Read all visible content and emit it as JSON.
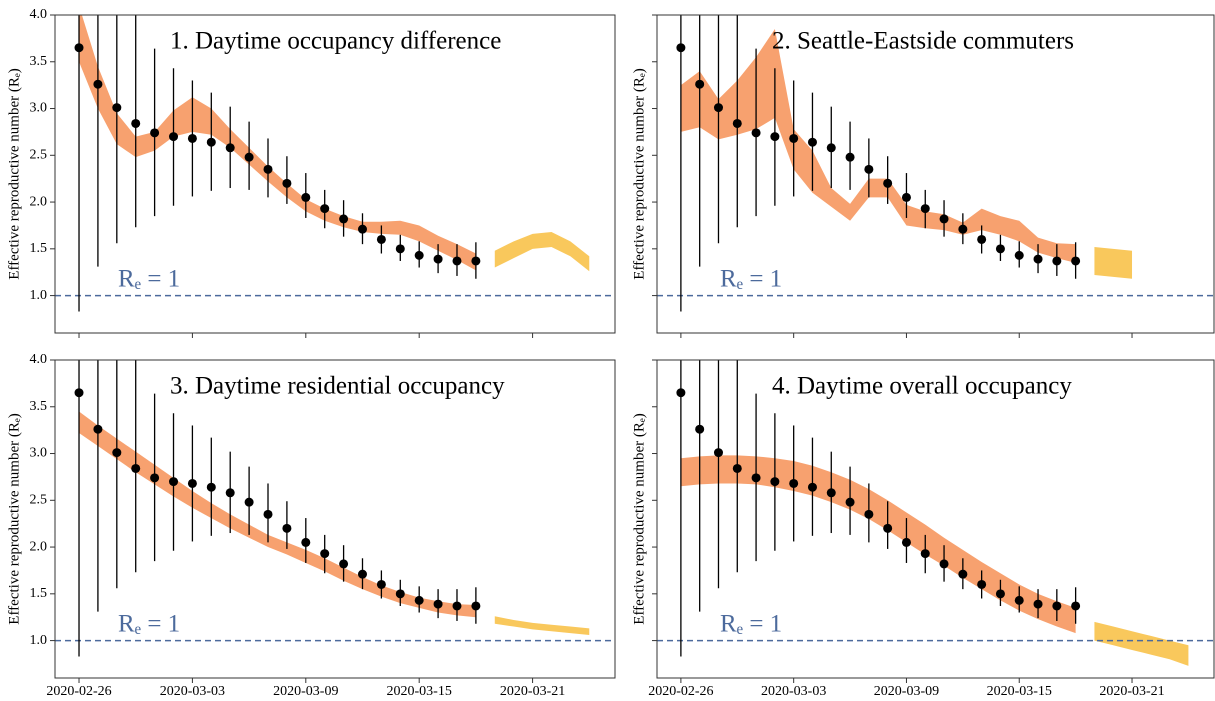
{
  "chart_data": [
    {
      "type": "errorbar",
      "title": "1. Daytime occupancy difference",
      "ylabel": "Effective reproductive number (Rₑ)",
      "x": [
        "2020-02-26",
        "2020-02-27",
        "2020-02-28",
        "2020-02-29",
        "2020-03-01",
        "2020-03-02",
        "2020-03-03",
        "2020-03-04",
        "2020-03-05",
        "2020-03-06",
        "2020-03-07",
        "2020-03-08",
        "2020-03-09",
        "2020-03-10",
        "2020-03-11",
        "2020-03-12",
        "2020-03-13",
        "2020-03-14",
        "2020-03-15",
        "2020-03-16",
        "2020-03-17",
        "2020-03-18"
      ],
      "estimates": {
        "color": "#000000",
        "values": [
          3.65,
          3.26,
          3.01,
          2.84,
          2.74,
          2.7,
          2.68,
          2.64,
          2.58,
          2.48,
          2.35,
          2.2,
          2.05,
          1.93,
          1.82,
          1.71,
          1.6,
          1.5,
          1.43,
          1.39,
          1.37,
          1.37
        ],
        "lower": [
          0.83,
          1.31,
          1.56,
          1.73,
          1.85,
          1.96,
          2.06,
          2.12,
          2.15,
          2.13,
          2.05,
          1.98,
          1.83,
          1.72,
          1.63,
          1.55,
          1.45,
          1.37,
          1.3,
          1.24,
          1.21,
          1.18
        ],
        "upper": [
          6.5,
          6.0,
          5.0,
          4.2,
          3.64,
          3.43,
          3.3,
          3.17,
          3.02,
          2.86,
          2.68,
          2.49,
          2.31,
          2.13,
          2.02,
          1.88,
          1.75,
          1.65,
          1.58,
          1.55,
          1.55,
          1.57
        ]
      },
      "fit": {
        "color": "#f7a16f",
        "lower": [
          3.5,
          3.0,
          2.62,
          2.48,
          2.55,
          2.7,
          2.75,
          2.72,
          2.58,
          2.4,
          2.22,
          2.05,
          1.9,
          1.8,
          1.73,
          1.68,
          1.66,
          1.65,
          1.58,
          1.48,
          1.38,
          1.27
        ],
        "upper": [
          4.1,
          3.45,
          2.95,
          2.7,
          2.75,
          2.98,
          3.12,
          3.0,
          2.78,
          2.58,
          2.38,
          2.2,
          2.03,
          1.93,
          1.85,
          1.79,
          1.79,
          1.8,
          1.75,
          1.64,
          1.55,
          1.45
        ]
      },
      "forecast": {
        "color": "#f9c85c",
        "x": [
          "2020-03-19",
          "2020-03-20",
          "2020-03-21",
          "2020-03-22",
          "2020-03-23",
          "2020-03-24"
        ],
        "lower": [
          1.3,
          1.4,
          1.5,
          1.52,
          1.42,
          1.26
        ],
        "upper": [
          1.48,
          1.58,
          1.66,
          1.68,
          1.58,
          1.42
        ]
      },
      "reference": {
        "value": 1,
        "label": "Rₑ = 1",
        "color": "#4c6a9c"
      },
      "xlim": [
        "2020-02-24T17:30Z",
        "2020-03-25T08:40Z"
      ],
      "xticks": [
        "2020-02-26",
        "2020-03-03",
        "2020-03-09",
        "2020-03-15",
        "2020-03-21"
      ],
      "show_xtick_labels": false,
      "ylim": [
        0.6,
        4.0
      ],
      "yticks": [
        {
          "value": 1,
          "label": "1.0"
        },
        1.5,
        {
          "value": 2,
          "label": "2.0"
        },
        2.5,
        {
          "value": 3,
          "label": "3.0"
        },
        3.5,
        {
          "value": 4,
          "label": "4.0"
        }
      ],
      "show_ytick_labels": true
    },
    {
      "type": "errorbar",
      "title": "2. Seattle-Eastside commuters",
      "ylabel": "Effective reproductive number (Rₑ)",
      "x": [
        "2020-02-26",
        "2020-02-27",
        "2020-02-28",
        "2020-02-29",
        "2020-03-01",
        "2020-03-02",
        "2020-03-03",
        "2020-03-04",
        "2020-03-05",
        "2020-03-06",
        "2020-03-07",
        "2020-03-08",
        "2020-03-09",
        "2020-03-10",
        "2020-03-11",
        "2020-03-12",
        "2020-03-13",
        "2020-03-14",
        "2020-03-15",
        "2020-03-16",
        "2020-03-17",
        "2020-03-18"
      ],
      "estimates": {
        "color": "#000000",
        "values": [
          3.65,
          3.26,
          3.01,
          2.84,
          2.74,
          2.7,
          2.68,
          2.64,
          2.58,
          2.48,
          2.35,
          2.2,
          2.05,
          1.93,
          1.82,
          1.71,
          1.6,
          1.5,
          1.43,
          1.39,
          1.37,
          1.37
        ],
        "lower": [
          0.83,
          1.31,
          1.56,
          1.73,
          1.85,
          1.96,
          2.06,
          2.12,
          2.15,
          2.13,
          2.05,
          1.98,
          1.83,
          1.72,
          1.63,
          1.55,
          1.45,
          1.37,
          1.3,
          1.24,
          1.21,
          1.18
        ],
        "upper": [
          6.5,
          6.0,
          5.0,
          4.2,
          3.64,
          3.43,
          3.3,
          3.17,
          3.02,
          2.86,
          2.68,
          2.49,
          2.31,
          2.13,
          2.02,
          1.88,
          1.75,
          1.65,
          1.58,
          1.55,
          1.55,
          1.57
        ]
      },
      "fit": {
        "color": "#f7a16f",
        "lower": [
          2.75,
          2.8,
          2.67,
          2.72,
          2.78,
          2.9,
          2.35,
          2.1,
          1.95,
          1.8,
          2.05,
          2.05,
          1.75,
          1.72,
          1.7,
          1.65,
          1.7,
          1.65,
          1.58,
          1.46,
          1.4,
          1.35
        ],
        "upper": [
          3.25,
          3.4,
          3.1,
          3.3,
          3.55,
          3.85,
          2.78,
          2.55,
          2.15,
          1.98,
          2.25,
          2.25,
          1.97,
          1.9,
          1.87,
          1.78,
          1.93,
          1.85,
          1.8,
          1.62,
          1.56,
          1.55
        ]
      },
      "forecast": {
        "color": "#f9c85c",
        "x": [
          "2020-03-19",
          "2020-03-20",
          "2020-03-21"
        ],
        "lower": [
          1.22,
          1.2,
          1.18
        ],
        "upper": [
          1.52,
          1.5,
          1.48
        ]
      },
      "reference": {
        "value": 1,
        "label": "Rₑ = 1",
        "color": "#4c6a9c"
      },
      "xlim": [
        "2020-02-24T17:30Z",
        "2020-03-25T08:40Z"
      ],
      "xticks": [
        "2020-02-26",
        "2020-03-03",
        "2020-03-09",
        "2020-03-15",
        "2020-03-21"
      ],
      "show_xtick_labels": false,
      "ylim": [
        0.6,
        4.0
      ],
      "yticks": [
        1,
        1.5,
        2,
        2.5,
        3,
        3.5,
        4
      ],
      "show_ytick_labels": false
    },
    {
      "type": "errorbar",
      "title": "3. Daytime residential occupancy",
      "ylabel": "Effective reproductive number (Rₑ)",
      "x": [
        "2020-02-26",
        "2020-02-27",
        "2020-02-28",
        "2020-02-29",
        "2020-03-01",
        "2020-03-02",
        "2020-03-03",
        "2020-03-04",
        "2020-03-05",
        "2020-03-06",
        "2020-03-07",
        "2020-03-08",
        "2020-03-09",
        "2020-03-10",
        "2020-03-11",
        "2020-03-12",
        "2020-03-13",
        "2020-03-14",
        "2020-03-15",
        "2020-03-16",
        "2020-03-17",
        "2020-03-18"
      ],
      "estimates": {
        "color": "#000000",
        "values": [
          3.65,
          3.26,
          3.01,
          2.84,
          2.74,
          2.7,
          2.68,
          2.64,
          2.58,
          2.48,
          2.35,
          2.2,
          2.05,
          1.93,
          1.82,
          1.71,
          1.6,
          1.5,
          1.43,
          1.39,
          1.37,
          1.37
        ],
        "lower": [
          0.83,
          1.31,
          1.56,
          1.73,
          1.85,
          1.96,
          2.06,
          2.12,
          2.15,
          2.13,
          2.05,
          1.98,
          1.83,
          1.72,
          1.63,
          1.55,
          1.45,
          1.37,
          1.3,
          1.24,
          1.21,
          1.18
        ],
        "upper": [
          6.5,
          6.0,
          5.0,
          4.2,
          3.64,
          3.43,
          3.3,
          3.17,
          3.02,
          2.86,
          2.68,
          2.49,
          2.31,
          2.13,
          2.02,
          1.88,
          1.75,
          1.65,
          1.58,
          1.55,
          1.55,
          1.57
        ]
      },
      "fit": {
        "color": "#f7a16f",
        "lower": [
          3.22,
          3.08,
          2.94,
          2.8,
          2.67,
          2.54,
          2.42,
          2.31,
          2.2,
          2.1,
          2.0,
          1.92,
          1.83,
          1.74,
          1.64,
          1.55,
          1.47,
          1.4,
          1.35,
          1.3,
          1.27,
          1.25
        ],
        "upper": [
          3.45,
          3.3,
          3.16,
          3.02,
          2.88,
          2.74,
          2.6,
          2.47,
          2.35,
          2.24,
          2.13,
          2.05,
          1.97,
          1.88,
          1.78,
          1.68,
          1.59,
          1.52,
          1.46,
          1.42,
          1.39,
          1.38
        ]
      },
      "forecast": {
        "color": "#f9c85c",
        "x": [
          "2020-03-19",
          "2020-03-20",
          "2020-03-21",
          "2020-03-22",
          "2020-03-23",
          "2020-03-24"
        ],
        "lower": [
          1.18,
          1.15,
          1.12,
          1.1,
          1.08,
          1.06
        ],
        "upper": [
          1.26,
          1.22,
          1.19,
          1.17,
          1.15,
          1.13
        ]
      },
      "reference": {
        "value": 1,
        "label": "Rₑ = 1",
        "color": "#4c6a9c"
      },
      "xlim": [
        "2020-02-24T17:30Z",
        "2020-03-25T08:40Z"
      ],
      "xticks": [
        "2020-02-26",
        "2020-03-03",
        "2020-03-09",
        "2020-03-15",
        "2020-03-21"
      ],
      "show_xtick_labels": true,
      "ylim": [
        0.6,
        4.0
      ],
      "yticks": [
        {
          "value": 1,
          "label": "1.0"
        },
        1.5,
        {
          "value": 2,
          "label": "2.0"
        },
        2.5,
        {
          "value": 3,
          "label": "3.0"
        },
        3.5,
        {
          "value": 4,
          "label": "4.0"
        }
      ],
      "show_ytick_labels": true
    },
    {
      "type": "errorbar",
      "title": "4. Daytime overall occupancy",
      "ylabel": "Effective reproductive number (Rₑ)",
      "x": [
        "2020-02-26",
        "2020-02-27",
        "2020-02-28",
        "2020-02-29",
        "2020-03-01",
        "2020-03-02",
        "2020-03-03",
        "2020-03-04",
        "2020-03-05",
        "2020-03-06",
        "2020-03-07",
        "2020-03-08",
        "2020-03-09",
        "2020-03-10",
        "2020-03-11",
        "2020-03-12",
        "2020-03-13",
        "2020-03-14",
        "2020-03-15",
        "2020-03-16",
        "2020-03-17",
        "2020-03-18"
      ],
      "estimates": {
        "color": "#000000",
        "values": [
          3.65,
          3.26,
          3.01,
          2.84,
          2.74,
          2.7,
          2.68,
          2.64,
          2.58,
          2.48,
          2.35,
          2.2,
          2.05,
          1.93,
          1.82,
          1.71,
          1.6,
          1.5,
          1.43,
          1.39,
          1.37,
          1.37
        ],
        "lower": [
          0.83,
          1.31,
          1.56,
          1.73,
          1.85,
          1.96,
          2.06,
          2.12,
          2.15,
          2.13,
          2.05,
          1.98,
          1.83,
          1.72,
          1.63,
          1.55,
          1.45,
          1.37,
          1.3,
          1.24,
          1.21,
          1.18
        ],
        "upper": [
          6.5,
          6.0,
          5.0,
          4.2,
          3.64,
          3.43,
          3.3,
          3.17,
          3.02,
          2.86,
          2.68,
          2.49,
          2.31,
          2.13,
          2.02,
          1.88,
          1.75,
          1.65,
          1.58,
          1.55,
          1.55,
          1.57
        ]
      },
      "fit": {
        "color": "#f7a16f",
        "lower": [
          2.65,
          2.67,
          2.68,
          2.68,
          2.67,
          2.64,
          2.6,
          2.55,
          2.48,
          2.4,
          2.3,
          2.18,
          2.05,
          1.92,
          1.8,
          1.67,
          1.55,
          1.43,
          1.32,
          1.23,
          1.15,
          1.08
        ],
        "upper": [
          2.95,
          2.97,
          2.98,
          2.98,
          2.97,
          2.95,
          2.92,
          2.87,
          2.8,
          2.72,
          2.62,
          2.5,
          2.37,
          2.24,
          2.1,
          1.97,
          1.84,
          1.72,
          1.6,
          1.5,
          1.42,
          1.35
        ]
      },
      "forecast": {
        "color": "#f9c85c",
        "x": [
          "2020-03-19",
          "2020-03-20",
          "2020-03-21",
          "2020-03-22",
          "2020-03-23",
          "2020-03-24"
        ],
        "lower": [
          1.0,
          0.95,
          0.9,
          0.85,
          0.8,
          0.73
        ],
        "upper": [
          1.2,
          1.15,
          1.1,
          1.05,
          1.0,
          0.95
        ]
      },
      "reference": {
        "value": 1,
        "label": "Rₑ = 1",
        "color": "#4c6a9c"
      },
      "xlim": [
        "2020-02-24T17:30Z",
        "2020-03-25T08:40Z"
      ],
      "xticks": [
        "2020-02-26",
        "2020-03-03",
        "2020-03-09",
        "2020-03-15",
        "2020-03-21"
      ],
      "show_xtick_labels": true,
      "ylim": [
        0.6,
        4.0
      ],
      "yticks": [
        1,
        1.5,
        2,
        2.5,
        3,
        3.5,
        4
      ],
      "show_ytick_labels": false
    }
  ]
}
